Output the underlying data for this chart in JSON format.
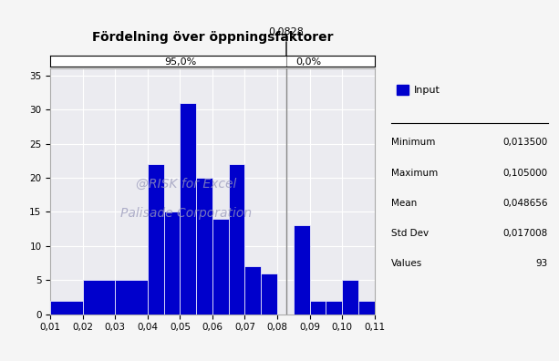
{
  "title": "Fördelning över öppningsfaktorer",
  "bar_left_edges": [
    0.01,
    0.02,
    0.03,
    0.04,
    0.045,
    0.05,
    0.055,
    0.06,
    0.065,
    0.07,
    0.075,
    0.08,
    0.085,
    0.09,
    0.095,
    0.1,
    0.105
  ],
  "bar_right_edges": [
    0.02,
    0.03,
    0.04,
    0.045,
    0.05,
    0.055,
    0.06,
    0.065,
    0.07,
    0.075,
    0.08,
    0.085,
    0.09,
    0.095,
    0.1,
    0.105,
    0.11
  ],
  "bar_heights": [
    2,
    5,
    5,
    22,
    15,
    31,
    20,
    14,
    22,
    7,
    6,
    0,
    13,
    2,
    2,
    5,
    2
  ],
  "bar_color": "#0000CC",
  "xlim": [
    0.01,
    0.11
  ],
  "ylim": [
    0,
    36
  ],
  "xticks": [
    0.01,
    0.02,
    0.03,
    0.04,
    0.05,
    0.06,
    0.07,
    0.08,
    0.09,
    0.1,
    0.11
  ],
  "yticks": [
    0,
    5,
    10,
    15,
    20,
    25,
    30,
    35
  ],
  "vertical_line_x": 0.0828,
  "vertical_line_label": "0,0828",
  "pct_left_label": "95,0%",
  "pct_right_label": "0,0%",
  "watermark_line1": "@RISK for Excel",
  "watermark_line2": "Palisade Corporation",
  "legend_label": "Input",
  "stat_minimum": "0,013500",
  "stat_maximum": "0,105000",
  "stat_mean": "0,048656",
  "stat_stddev": "0,017008",
  "stat_values": "93",
  "plot_bg_color": "#EBEBF0",
  "fig_bg_color": "#F5F5F5"
}
